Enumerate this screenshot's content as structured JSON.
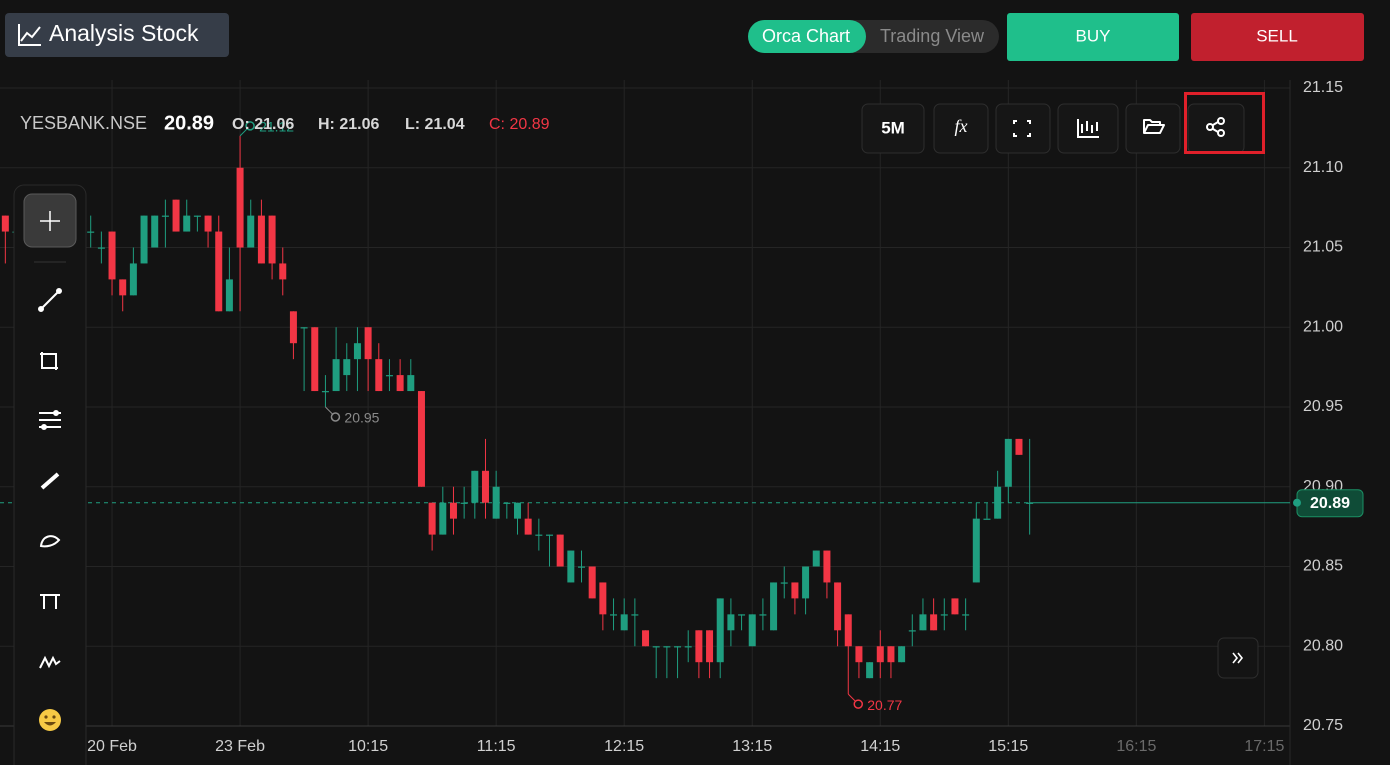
{
  "header": {
    "title": "Analysis Stock",
    "views": [
      "Orca Chart",
      "Trading View"
    ],
    "buy": "BUY",
    "sell": "SELL"
  },
  "info": {
    "symbol": "YESBANK.NSE",
    "price": "20.89",
    "open": "O: 21.06",
    "high": "H: 21.06",
    "low": "L: 21.04",
    "close": "C: 20.89"
  },
  "toolbar": {
    "interval": "5M",
    "functions": "fx"
  },
  "chart_data": {
    "type": "candlestick",
    "open": [
      21.07,
      21.06,
      21.06,
      21.07,
      21.07,
      21.06,
      21.06,
      21.06,
      21.06,
      21.05,
      21.06,
      21.03,
      21.02,
      21.04,
      21.05,
      21.07,
      21.08,
      21.06,
      21.07,
      21.07,
      21.06,
      21.01,
      21.1,
      21.05,
      21.07,
      21.07,
      21.04,
      21.01,
      21.0,
      21.0,
      20.96,
      20.96,
      20.97,
      20.98,
      21.0,
      20.98,
      20.97,
      20.97,
      20.96,
      20.96,
      20.89,
      20.87,
      20.89,
      20.89,
      20.89,
      20.91,
      20.88,
      20.89,
      20.88,
      20.88,
      20.87,
      20.87,
      20.87,
      20.84,
      20.85,
      20.85,
      20.84,
      20.82,
      20.81,
      20.82,
      20.81,
      20.8,
      20.8,
      20.8,
      20.8,
      20.81,
      20.81,
      20.79,
      20.81,
      20.82,
      20.8,
      20.82,
      20.81,
      20.84,
      20.84,
      20.83,
      20.85,
      20.86,
      20.84,
      20.82,
      20.8,
      20.78,
      20.8,
      20.8,
      20.79,
      20.81,
      20.81,
      20.82,
      20.82,
      20.83,
      20.82,
      20.84,
      20.88,
      20.88,
      20.9,
      20.93,
      20.89
    ],
    "high": [
      21.07,
      21.07,
      21.07,
      21.08,
      21.07,
      21.07,
      21.07,
      21.07,
      21.07,
      21.06,
      21.06,
      21.03,
      21.05,
      21.07,
      21.07,
      21.08,
      21.08,
      21.08,
      21.07,
      21.07,
      21.07,
      21.05,
      21.12,
      21.08,
      21.08,
      21.07,
      21.05,
      21.01,
      21.0,
      21.0,
      20.97,
      21.0,
      20.99,
      21.0,
      21.0,
      20.99,
      20.98,
      20.98,
      20.98,
      20.96,
      20.89,
      20.9,
      20.9,
      20.9,
      20.91,
      20.93,
      20.91,
      20.89,
      20.89,
      20.89,
      20.88,
      20.87,
      20.87,
      20.86,
      20.86,
      20.85,
      20.84,
      20.83,
      20.83,
      20.83,
      20.81,
      20.8,
      20.8,
      20.8,
      20.81,
      20.81,
      20.81,
      20.83,
      20.83,
      20.82,
      20.82,
      20.83,
      20.84,
      20.85,
      20.84,
      20.85,
      20.86,
      20.86,
      20.84,
      20.82,
      20.8,
      20.79,
      20.81,
      20.8,
      20.8,
      20.82,
      20.83,
      20.83,
      20.83,
      20.83,
      20.83,
      20.89,
      20.89,
      20.91,
      20.93,
      20.93,
      20.93
    ],
    "low": [
      21.04,
      21.05,
      21.05,
      21.06,
      21.05,
      21.05,
      21.05,
      21.05,
      21.05,
      21.04,
      21.02,
      21.01,
      21.02,
      21.04,
      21.05,
      21.05,
      21.06,
      21.06,
      21.06,
      21.05,
      21.01,
      21.01,
      21.01,
      21.05,
      21.04,
      21.03,
      21.02,
      20.98,
      20.96,
      20.96,
      20.95,
      20.96,
      20.96,
      20.96,
      20.96,
      20.96,
      20.96,
      20.96,
      20.96,
      20.9,
      20.86,
      20.87,
      20.87,
      20.88,
      20.88,
      20.88,
      20.88,
      20.88,
      20.87,
      20.87,
      20.86,
      20.85,
      20.85,
      20.84,
      20.84,
      20.83,
      20.81,
      20.81,
      20.81,
      20.8,
      20.8,
      20.78,
      20.78,
      20.78,
      20.79,
      20.78,
      20.78,
      20.78,
      20.8,
      20.81,
      20.8,
      20.81,
      20.81,
      20.83,
      20.82,
      20.82,
      20.85,
      20.83,
      20.8,
      20.77,
      20.78,
      20.78,
      20.78,
      20.78,
      20.79,
      20.8,
      20.81,
      20.81,
      20.81,
      20.82,
      20.81,
      20.84,
      20.88,
      20.88,
      20.89,
      20.92,
      20.87
    ],
    "close": [
      21.06,
      21.06,
      21.07,
      21.07,
      21.06,
      21.06,
      21.06,
      21.06,
      21.06,
      21.05,
      21.03,
      21.02,
      21.04,
      21.07,
      21.07,
      21.07,
      21.06,
      21.07,
      21.07,
      21.06,
      21.01,
      21.03,
      21.05,
      21.07,
      21.04,
      21.04,
      21.03,
      20.99,
      21.0,
      20.96,
      20.96,
      20.98,
      20.98,
      20.99,
      20.98,
      20.96,
      20.97,
      20.96,
      20.97,
      20.9,
      20.87,
      20.89,
      20.88,
      20.89,
      20.91,
      20.89,
      20.9,
      20.89,
      20.89,
      20.87,
      20.87,
      20.87,
      20.85,
      20.86,
      20.85,
      20.83,
      20.82,
      20.82,
      20.82,
      20.82,
      20.8,
      20.8,
      20.8,
      20.8,
      20.8,
      20.79,
      20.79,
      20.83,
      20.82,
      20.82,
      20.82,
      20.82,
      20.84,
      20.84,
      20.83,
      20.85,
      20.86,
      20.84,
      20.81,
      20.8,
      20.79,
      20.79,
      20.79,
      20.79,
      20.8,
      20.81,
      20.82,
      20.81,
      20.82,
      20.82,
      20.82,
      20.88,
      20.88,
      20.9,
      20.93,
      20.92,
      20.89
    ],
    "up_color": "#1f9e80",
    "down_color": "#f23645",
    "xlim": [
      -0.5,
      120.4
    ],
    "xticks": [
      {
        "value": 10,
        "label": "20 Feb"
      },
      {
        "value": 22,
        "label": "23 Feb"
      },
      {
        "value": 34,
        "label": "10:15"
      },
      {
        "value": 46,
        "label": "11:15"
      },
      {
        "value": 58,
        "label": "12:15"
      },
      {
        "value": 70,
        "label": "13:15"
      },
      {
        "value": 82,
        "label": "14:15"
      },
      {
        "value": 94,
        "label": "15:15"
      },
      {
        "value": 106,
        "label": "16:15"
      },
      {
        "value": 118,
        "label": "17:15"
      }
    ],
    "ylim": [
      20.75,
      21.15
    ],
    "yticks": [
      20.75,
      {
        "value": 20.8,
        "label": "20.80"
      },
      20.85,
      {
        "value": 20.9,
        "label": "20.90"
      },
      20.95,
      {
        "value": 21.0,
        "label": "21.00"
      },
      21.05,
      {
        "value": 21.1,
        "label": "21.10"
      },
      21.15
    ],
    "grid": true,
    "last_price": 20.89,
    "markers": [
      21.12,
      20.95,
      20.77
    ],
    "marker_colors": [
      "#1f9e80",
      "#8a8a8a",
      "#f23645"
    ]
  }
}
